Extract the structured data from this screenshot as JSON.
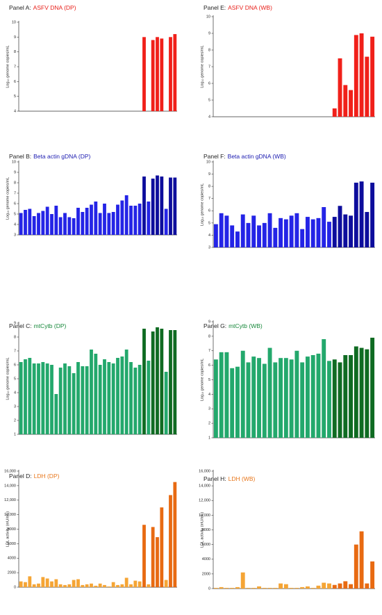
{
  "chart_data": [
    {
      "type": "bar",
      "panel": "Panel A:",
      "title": "ASFV DNA (DP)",
      "title_color": "#e8201a",
      "y_label": "Log₁₀ genome copies/mL",
      "categories": [
        null,
        null,
        null,
        null,
        null,
        null,
        null,
        null,
        null,
        null,
        null,
        null,
        null,
        null,
        null,
        null,
        null,
        null,
        null,
        null,
        null,
        null,
        null,
        null,
        null,
        null,
        null,
        null,
        null,
        null,
        null,
        null,
        null,
        null,
        null,
        null
      ],
      "values": [
        null,
        null,
        null,
        null,
        null,
        null,
        null,
        null,
        null,
        null,
        null,
        null,
        null,
        null,
        null,
        null,
        null,
        null,
        null,
        null,
        null,
        null,
        null,
        null,
        null,
        null,
        null,
        null,
        9.0,
        null,
        8.8,
        9.0,
        8.9,
        null,
        9.0,
        9.2
      ],
      "colors": [
        "#f0201a",
        "#f0201a",
        "#f0201a",
        "#f0201a",
        "#f0201a",
        "#f0201a",
        "#f0201a",
        "#f0201a",
        "#f0201a",
        "#f0201a",
        "#f0201a",
        "#f0201a",
        "#f0201a",
        "#f0201a",
        "#f0201a",
        "#f0201a",
        "#f0201a",
        "#f0201a",
        "#f0201a",
        "#f0201a",
        "#f0201a",
        "#f0201a",
        "#f0201a",
        "#f0201a",
        "#f0201a",
        "#f0201a",
        "#f0201a",
        "#f0201a",
        "#f0201a",
        "#f0201a",
        "#f0201a",
        "#f0201a",
        "#f0201a",
        "#f0201a",
        "#f0201a",
        "#f0201a"
      ],
      "ylim": [
        4,
        10
      ],
      "yticks": [
        4,
        5,
        6,
        7,
        8,
        9,
        10
      ]
    },
    {
      "type": "bar",
      "panel": "Panel B:",
      "title": "Beta actin gDNA (DP)",
      "title_color": "#1a1ab0",
      "y_label": "Log₁₀ genome copies/mL",
      "categories": [
        null,
        null,
        null,
        null,
        null,
        null,
        null,
        null,
        null,
        null,
        null,
        null,
        null,
        null,
        null,
        null,
        null,
        null,
        null,
        null,
        null,
        null,
        null,
        null,
        null,
        null,
        null,
        null,
        null,
        null,
        null,
        null,
        null,
        null,
        null,
        null
      ],
      "values": [
        5.1,
        5.4,
        5.5,
        4.8,
        5.1,
        5.3,
        5.7,
        5.0,
        5.8,
        4.7,
        5.1,
        4.7,
        4.6,
        5.6,
        5.2,
        5.6,
        5.9,
        6.2,
        5.1,
        6.0,
        5.1,
        5.2,
        5.9,
        6.3,
        6.8,
        5.8,
        5.8,
        6.0,
        8.6,
        6.2,
        8.4,
        8.7,
        8.6,
        5.5,
        8.5,
        8.5
      ],
      "colors": [
        "#2424e6",
        "#2424e6",
        "#2424e6",
        "#2424e6",
        "#2424e6",
        "#2424e6",
        "#2424e6",
        "#2424e6",
        "#2424e6",
        "#2424e6",
        "#2424e6",
        "#2424e6",
        "#2424e6",
        "#2424e6",
        "#2424e6",
        "#2424e6",
        "#2424e6",
        "#2424e6",
        "#2424e6",
        "#2424e6",
        "#2424e6",
        "#2424e6",
        "#2424e6",
        "#2424e6",
        "#2424e6",
        "#2424e6",
        "#2424e6",
        "#2424e6",
        "#0d0d9c",
        "#2424e6",
        "#0d0d9c",
        "#0d0d9c",
        "#0d0d9c",
        "#2424e6",
        "#0d0d9c",
        "#0d0d9c"
      ],
      "ylim": [
        3,
        10
      ],
      "yticks": [
        3,
        4,
        5,
        6,
        7,
        8,
        9,
        10
      ]
    },
    {
      "type": "bar",
      "panel": "Panel C:",
      "title": "mtCytb (DP)",
      "title_color": "#16883a",
      "y_label": "Log₁₀ genome copies/mL",
      "categories": [
        null,
        null,
        null,
        null,
        null,
        null,
        null,
        null,
        null,
        null,
        null,
        null,
        null,
        null,
        null,
        null,
        null,
        null,
        null,
        null,
        null,
        null,
        null,
        null,
        null,
        null,
        null,
        null,
        null,
        null,
        null,
        null,
        null,
        null,
        null,
        null
      ],
      "values": [
        6.2,
        6.4,
        6.5,
        6.1,
        6.1,
        6.2,
        6.1,
        6.0,
        3.9,
        5.8,
        6.1,
        5.9,
        5.4,
        6.2,
        5.9,
        5.9,
        7.1,
        6.8,
        6.0,
        6.4,
        6.2,
        6.1,
        6.5,
        6.6,
        7.1,
        6.2,
        5.8,
        6.0,
        8.6,
        6.3,
        8.4,
        8.7,
        8.6,
        5.5,
        8.5,
        8.5
      ],
      "colors": [
        "#23a86c",
        "#23a86c",
        "#23a86c",
        "#23a86c",
        "#23a86c",
        "#23a86c",
        "#23a86c",
        "#23a86c",
        "#23a86c",
        "#23a86c",
        "#23a86c",
        "#23a86c",
        "#23a86c",
        "#23a86c",
        "#23a86c",
        "#23a86c",
        "#23a86c",
        "#23a86c",
        "#23a86c",
        "#23a86c",
        "#23a86c",
        "#23a86c",
        "#23a86c",
        "#23a86c",
        "#23a86c",
        "#23a86c",
        "#23a86c",
        "#23a86c",
        "#0f6b22",
        "#23a86c",
        "#0f6b22",
        "#0f6b22",
        "#0f6b22",
        "#23a86c",
        "#0f6b22",
        "#0f6b22"
      ],
      "ylim": [
        1,
        9
      ],
      "yticks": [
        1,
        2,
        3,
        4,
        5,
        6,
        7,
        8,
        9
      ]
    },
    {
      "type": "bar",
      "panel": "Panel D:",
      "title": "LDH (DP)",
      "title_color": "#e8761a",
      "y_label": "LDL activity (mU/mL)",
      "categories": [
        null,
        null,
        null,
        null,
        null,
        null,
        null,
        null,
        null,
        null,
        null,
        null,
        null,
        null,
        null,
        null,
        null,
        null,
        null,
        null,
        null,
        null,
        null,
        null,
        null,
        null,
        null,
        null,
        null,
        null,
        null,
        null,
        null,
        null,
        null,
        null
      ],
      "values": [
        800,
        700,
        1500,
        400,
        500,
        1400,
        1200,
        800,
        1100,
        400,
        300,
        400,
        1000,
        1100,
        300,
        400,
        500,
        200,
        500,
        300,
        100,
        700,
        300,
        400,
        1300,
        400,
        900,
        800,
        8600,
        400,
        8300,
        6900,
        11000,
        1000,
        12700,
        14500
      ],
      "colors": [
        "#f5a535",
        "#f5a535",
        "#f5a535",
        "#f5a535",
        "#f5a535",
        "#f5a535",
        "#f5a535",
        "#f5a535",
        "#f5a535",
        "#f5a535",
        "#f5a535",
        "#f5a535",
        "#f5a535",
        "#f5a535",
        "#f5a535",
        "#f5a535",
        "#f5a535",
        "#f5a535",
        "#f5a535",
        "#f5a535",
        "#f5a535",
        "#f5a535",
        "#f5a535",
        "#f5a535",
        "#f5a535",
        "#f5a535",
        "#f5a535",
        "#f5a535",
        "#e86a12",
        "#f5a535",
        "#e86a12",
        "#e86a12",
        "#e86a12",
        "#f5a535",
        "#e86a12",
        "#e86a12"
      ],
      "ylim": [
        0,
        16000
      ],
      "yticks": [
        0,
        2000,
        4000,
        6000,
        8000,
        {
          "value": 10000,
          "label": "10,000"
        },
        {
          "value": 12000,
          "label": "12,000"
        },
        {
          "value": 14000,
          "label": "14,000"
        },
        {
          "value": 16000,
          "label": "16,000"
        }
      ]
    },
    {
      "type": "bar",
      "panel": "Panel E:",
      "title": "ASFV DNA (WB)",
      "title_color": "#e8201a",
      "y_label": "Log₁₀ genome copies/mL",
      "categories": [
        null,
        null,
        null,
        null,
        null,
        null,
        null,
        null,
        null,
        null,
        null,
        null,
        null,
        null,
        null,
        null,
        null,
        null,
        null,
        null,
        null,
        null,
        null,
        null,
        null,
        null,
        null,
        null,
        null,
        null
      ],
      "values": [
        null,
        null,
        null,
        null,
        null,
        null,
        null,
        null,
        null,
        null,
        null,
        null,
        null,
        null,
        null,
        null,
        null,
        null,
        null,
        null,
        null,
        null,
        4.5,
        7.5,
        5.9,
        5.6,
        8.9,
        9.0,
        7.6,
        8.8
      ],
      "colors": [
        "#f0201a",
        "#f0201a",
        "#f0201a",
        "#f0201a",
        "#f0201a",
        "#f0201a",
        "#f0201a",
        "#f0201a",
        "#f0201a",
        "#f0201a",
        "#f0201a",
        "#f0201a",
        "#f0201a",
        "#f0201a",
        "#f0201a",
        "#f0201a",
        "#f0201a",
        "#f0201a",
        "#f0201a",
        "#f0201a",
        "#f0201a",
        "#f0201a",
        "#f0201a",
        "#f0201a",
        "#f0201a",
        "#f0201a",
        "#f0201a",
        "#f0201a",
        "#f0201a",
        "#f0201a"
      ],
      "ylim": [
        4,
        10
      ],
      "yticks": [
        4,
        5,
        6,
        7,
        8,
        9,
        10
      ]
    },
    {
      "type": "bar",
      "panel": "Panel F:",
      "title": "Beta actin gDNA (WB)",
      "title_color": "#1a1ab0",
      "y_label": "Log₁₀ genome copies/mL",
      "categories": [
        null,
        null,
        null,
        null,
        null,
        null,
        null,
        null,
        null,
        null,
        null,
        null,
        null,
        null,
        null,
        null,
        null,
        null,
        null,
        null,
        null,
        null,
        null,
        null,
        null,
        null,
        null,
        null,
        null,
        null
      ],
      "values": [
        4.9,
        5.8,
        5.6,
        4.8,
        4.3,
        5.7,
        5.0,
        5.6,
        4.8,
        5.0,
        5.8,
        4.6,
        5.4,
        5.3,
        5.6,
        5.8,
        4.5,
        5.5,
        5.3,
        5.4,
        6.3,
        5.1,
        5.5,
        6.4,
        5.7,
        5.6,
        8.3,
        8.4,
        5.9,
        8.3
      ],
      "colors": [
        "#2424e6",
        "#2424e6",
        "#2424e6",
        "#2424e6",
        "#2424e6",
        "#2424e6",
        "#2424e6",
        "#2424e6",
        "#2424e6",
        "#2424e6",
        "#2424e6",
        "#2424e6",
        "#2424e6",
        "#2424e6",
        "#2424e6",
        "#2424e6",
        "#2424e6",
        "#2424e6",
        "#2424e6",
        "#2424e6",
        "#2424e6",
        "#2424e6",
        "#0d0d9c",
        "#0d0d9c",
        "#0d0d9c",
        "#0d0d9c",
        "#0d0d9c",
        "#0d0d9c",
        "#0d0d9c",
        "#0d0d9c"
      ],
      "ylim": [
        3,
        10
      ],
      "yticks": [
        3,
        4,
        5,
        6,
        7,
        8,
        9,
        10
      ]
    },
    {
      "type": "bar",
      "panel": "Panel G:",
      "title": "mtCytb (WB)",
      "title_color": "#16883a",
      "y_label": "Log₁₀ genome copies/mL",
      "categories": [
        null,
        null,
        null,
        null,
        null,
        null,
        null,
        null,
        null,
        null,
        null,
        null,
        null,
        null,
        null,
        null,
        null,
        null,
        null,
        null,
        null,
        null,
        null,
        null,
        null,
        null,
        null,
        null,
        null,
        null
      ],
      "values": [
        6.4,
        6.9,
        6.9,
        5.8,
        5.9,
        7.0,
        6.2,
        6.6,
        6.5,
        6.1,
        7.2,
        6.2,
        6.5,
        6.5,
        6.4,
        7.0,
        6.2,
        6.6,
        6.7,
        6.8,
        7.8,
        6.3,
        6.4,
        6.2,
        6.7,
        6.7,
        7.3,
        7.2,
        7.1,
        7.9
      ],
      "colors": [
        "#23a86c",
        "#23a86c",
        "#23a86c",
        "#23a86c",
        "#23a86c",
        "#23a86c",
        "#23a86c",
        "#23a86c",
        "#23a86c",
        "#23a86c",
        "#23a86c",
        "#23a86c",
        "#23a86c",
        "#23a86c",
        "#23a86c",
        "#23a86c",
        "#23a86c",
        "#23a86c",
        "#23a86c",
        "#23a86c",
        "#23a86c",
        "#23a86c",
        "#0f6b22",
        "#0f6b22",
        "#0f6b22",
        "#0f6b22",
        "#0f6b22",
        "#0f6b22",
        "#0f6b22",
        "#0f6b22"
      ],
      "ylim": [
        1,
        9
      ],
      "yticks": [
        1,
        2,
        3,
        4,
        5,
        6,
        7,
        8,
        9
      ]
    },
    {
      "type": "bar",
      "panel": "Panel H:",
      "title": "LDH (WB)",
      "title_color": "#e8761a",
      "y_label": "LDL activity (mU/mL)",
      "categories": [
        null,
        null,
        null,
        null,
        null,
        null,
        null,
        null,
        null,
        null,
        null,
        null,
        null,
        null,
        null,
        null,
        null,
        null,
        null,
        null,
        null,
        null,
        null,
        null,
        null,
        null,
        null,
        null,
        null,
        null
      ],
      "values": [
        100,
        200,
        100,
        100,
        200,
        2200,
        100,
        100,
        300,
        100,
        100,
        100,
        700,
        600,
        100,
        100,
        200,
        300,
        100,
        400,
        800,
        700,
        500,
        700,
        1000,
        600,
        6000,
        7800,
        700,
        3700
      ],
      "colors": [
        "#f5a535",
        "#f5a535",
        "#f5a535",
        "#f5a535",
        "#f5a535",
        "#f5a535",
        "#f5a535",
        "#f5a535",
        "#f5a535",
        "#f5a535",
        "#f5a535",
        "#f5a535",
        "#f5a535",
        "#f5a535",
        "#f5a535",
        "#f5a535",
        "#f5a535",
        "#f5a535",
        "#f5a535",
        "#f5a535",
        "#f5a535",
        "#f5a535",
        "#e86a12",
        "#e86a12",
        "#e86a12",
        "#e86a12",
        "#e86a12",
        "#e86a12",
        "#e86a12",
        "#e86a12"
      ],
      "ylim": [
        0,
        16000
      ],
      "yticks": [
        0,
        2000,
        4000,
        6000,
        8000,
        {
          "value": 10000,
          "label": "10,000"
        },
        {
          "value": 12000,
          "label": "12,000"
        },
        {
          "value": 14000,
          "label": "14,000"
        },
        {
          "value": 16000,
          "label": "16,000"
        }
      ]
    }
  ]
}
